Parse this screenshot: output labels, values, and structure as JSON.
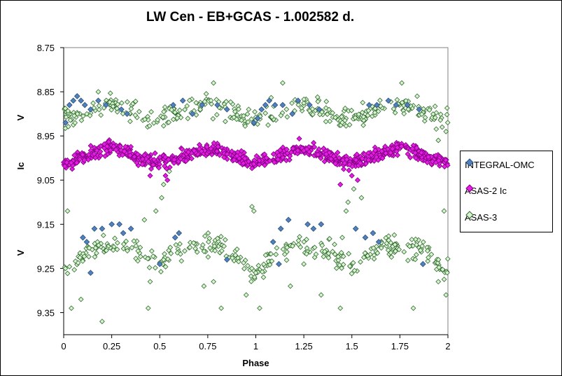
{
  "chart_data": {
    "type": "scatter",
    "title": "LW Cen - EB+GCAS - 1.002582  d.",
    "xlabel": "Phase",
    "ylabels": [
      "V",
      "Ic",
      "V"
    ],
    "xlim": [
      0,
      2
    ],
    "ylim": [
      8.75,
      9.4
    ],
    "y_inverted": true,
    "x_ticks": [
      "0",
      "0.25",
      "0.5",
      "0.75",
      "1",
      "1.25",
      "1.5",
      "1.75",
      "2"
    ],
    "y_ticks": [
      "8.75",
      "8.85",
      "8.95",
      "9.05",
      "9.15",
      "9.25",
      "9.35"
    ],
    "grid": false,
    "legend_position": "right",
    "series": [
      {
        "name": "INTEGRAL-OMC",
        "marker": "diamond",
        "color": "#4F81BD",
        "stroke": "#2E4F7A",
        "points": [
          [
            0.01,
            8.92
          ],
          [
            0.03,
            8.88
          ],
          [
            0.05,
            8.87
          ],
          [
            0.07,
            8.86
          ],
          [
            0.09,
            8.87
          ],
          [
            0.11,
            8.88
          ],
          [
            0.14,
            8.89
          ],
          [
            0.18,
            8.87
          ],
          [
            0.22,
            8.88
          ],
          [
            0.3,
            8.89
          ],
          [
            0.33,
            8.9
          ],
          [
            0.57,
            8.88
          ],
          [
            0.62,
            8.87
          ],
          [
            0.67,
            8.9
          ],
          [
            0.72,
            8.88
          ],
          [
            0.8,
            8.88
          ],
          [
            0.85,
            8.89
          ],
          [
            0.99,
            8.92
          ],
          [
            1.01,
            8.91
          ],
          [
            1.03,
            8.89
          ],
          [
            1.05,
            8.88
          ],
          [
            1.07,
            8.87
          ],
          [
            1.1,
            8.88
          ],
          [
            1.14,
            8.88
          ],
          [
            1.19,
            8.9
          ],
          [
            1.22,
            8.87
          ],
          [
            1.28,
            8.88
          ],
          [
            1.33,
            8.89
          ],
          [
            1.59,
            8.88
          ],
          [
            1.63,
            8.88
          ],
          [
            1.69,
            8.87
          ],
          [
            1.73,
            8.88
          ],
          [
            1.79,
            8.88
          ],
          [
            1.85,
            8.89
          ],
          [
            0.1,
            9.18
          ],
          [
            0.12,
            9.19
          ],
          [
            0.16,
            9.16
          ],
          [
            0.2,
            9.16
          ],
          [
            0.25,
            9.15
          ],
          [
            0.29,
            9.15
          ],
          [
            0.31,
            9.17
          ],
          [
            0.35,
            9.16
          ],
          [
            0.14,
            9.26
          ],
          [
            0.5,
            9.24
          ],
          [
            0.58,
            9.18
          ],
          [
            0.6,
            9.17
          ],
          [
            0.85,
            9.23
          ],
          [
            1.09,
            9.19
          ],
          [
            1.13,
            9.16
          ],
          [
            1.17,
            9.14
          ],
          [
            1.27,
            9.15
          ],
          [
            1.3,
            9.16
          ],
          [
            1.34,
            9.15
          ],
          [
            1.52,
            9.16
          ],
          [
            1.57,
            9.18
          ],
          [
            1.61,
            9.17
          ],
          [
            1.64,
            9.19
          ],
          [
            1.87,
            9.24
          ],
          [
            1.12,
            9.24
          ]
        ]
      },
      {
        "name": "ASAS-2 Ic",
        "marker": "diamond",
        "color": "#E41CE4",
        "stroke": "#800080",
        "mean": 8.995,
        "amp": 0.03,
        "scatter": 0.013,
        "count": 760,
        "outliers": [
          [
            0.53,
            9.04
          ],
          [
            0.54,
            9.05
          ],
          [
            1.5,
            9.04
          ],
          [
            1.53,
            9.05
          ],
          [
            1.44,
            9.06
          ],
          [
            0.45,
            9.04
          ]
        ]
      },
      {
        "name": "ASAS-3",
        "marker": "diamond",
        "color": "#D9F2D0",
        "stroke": "#2F6B2F",
        "top_band": {
          "mean": 8.895,
          "amp": 0.025,
          "scatter": 0.022,
          "count": 330
        },
        "bottom_band": {
          "count": 330,
          "scatter": 0.02
        },
        "extra_points": [
          [
            0.02,
            9.12
          ],
          [
            0.04,
            9.34
          ],
          [
            0.09,
            9.32
          ],
          [
            0.2,
            9.37
          ],
          [
            0.44,
            9.34
          ],
          [
            0.45,
            9.28
          ],
          [
            0.51,
            9.09
          ],
          [
            0.52,
            9.06
          ],
          [
            0.55,
            9.03
          ],
          [
            0.48,
            9.12
          ],
          [
            0.42,
            9.14
          ],
          [
            0.73,
            9.29
          ],
          [
            0.78,
            9.28
          ],
          [
            0.82,
            9.34
          ],
          [
            0.95,
            9.31
          ],
          [
            1.02,
            9.34
          ],
          [
            0.98,
            9.11
          ],
          [
            0.99,
            9.12
          ],
          [
            1.0,
            9.26
          ],
          [
            1.04,
            9.27
          ],
          [
            1.18,
            9.29
          ],
          [
            1.25,
            9.24
          ],
          [
            1.34,
            9.31
          ],
          [
            1.45,
            9.18
          ],
          [
            1.47,
            9.12
          ],
          [
            1.48,
            9.1
          ],
          [
            1.51,
            9.07
          ],
          [
            1.44,
            9.34
          ],
          [
            1.55,
            9.09
          ],
          [
            1.82,
            9.34
          ],
          [
            1.95,
            9.28
          ],
          [
            1.98,
            9.12
          ],
          [
            1.99,
            9.31
          ],
          [
            1.99,
            8.94
          ],
          [
            1.97,
            8.93
          ],
          [
            1.95,
            8.96
          ],
          [
            0.78,
            8.83
          ],
          [
            1.76,
            8.83
          ],
          [
            1.84,
            8.86
          ],
          [
            1.14,
            8.83
          ],
          [
            0.18,
            8.85
          ]
        ]
      }
    ]
  }
}
